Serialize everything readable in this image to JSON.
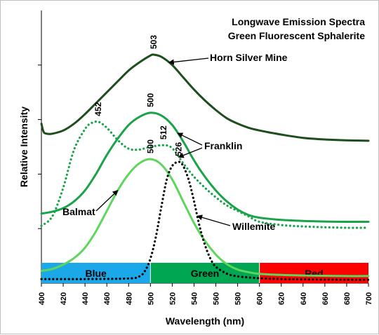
{
  "chart_data": {
    "type": "line",
    "title": [
      "Longwave Emission Spectra",
      "Green Fluorescent Sphalerite"
    ],
    "xlabel": "Wavelength (nm)",
    "ylabel": "Relative Intensity",
    "xlim": [
      400,
      700
    ],
    "ylim": [
      0,
      1
    ],
    "x_ticks": [
      400,
      420,
      440,
      460,
      480,
      500,
      520,
      540,
      560,
      580,
      600,
      620,
      640,
      660,
      680,
      700
    ],
    "y_tick_values": [
      0.2,
      0.4,
      0.6,
      0.8
    ],
    "y_tick_labels_shown": false,
    "grid": false,
    "legend": "none",
    "color_bands": [
      {
        "label": "Blue",
        "from": 400,
        "to": 500,
        "color": "#1ba8e8"
      },
      {
        "label": "Green",
        "from": 500,
        "to": 600,
        "color": "#00a651"
      },
      {
        "label": "Red",
        "from": 600,
        "to": 700,
        "color": "#ff0000"
      }
    ],
    "series": [
      {
        "name": "Horn Silver Mine",
        "peak_label": "503",
        "color": "#1e4d1e",
        "style": "solid",
        "x": [
          400,
          402,
          405,
          410,
          420,
          430,
          440,
          450,
          460,
          470,
          480,
          490,
          500,
          503,
          510,
          520,
          530,
          540,
          550,
          560,
          570,
          580,
          590,
          600,
          620,
          640,
          660,
          680,
          700
        ],
        "y": [
          0.585,
          0.555,
          0.548,
          0.548,
          0.56,
          0.585,
          0.62,
          0.66,
          0.7,
          0.74,
          0.78,
          0.81,
          0.835,
          0.838,
          0.83,
          0.8,
          0.755,
          0.71,
          0.67,
          0.635,
          0.605,
          0.585,
          0.57,
          0.56,
          0.545,
          0.533,
          0.527,
          0.524,
          0.522
        ]
      },
      {
        "name": "Franklin",
        "peak_label": "500",
        "color": "#1aa34a",
        "style": "solid",
        "x": [
          400,
          410,
          420,
          430,
          440,
          450,
          460,
          470,
          480,
          490,
          500,
          510,
          520,
          530,
          540,
          550,
          560,
          570,
          580,
          590,
          600,
          620,
          640,
          660,
          680,
          700
        ],
        "y": [
          0.255,
          0.262,
          0.275,
          0.3,
          0.34,
          0.4,
          0.47,
          0.53,
          0.58,
          0.61,
          0.625,
          0.615,
          0.58,
          0.52,
          0.45,
          0.39,
          0.34,
          0.3,
          0.27,
          0.25,
          0.24,
          0.232,
          0.228,
          0.226,
          0.225,
          0.225
        ]
      },
      {
        "name": "Franklin",
        "peak_label": "452",
        "peak_label_2": "512",
        "color": "#1aa34a",
        "style": "dotted",
        "x": [
          400,
          410,
          420,
          430,
          440,
          445,
          452,
          460,
          470,
          480,
          490,
          500,
          512,
          520,
          530,
          540,
          550,
          560,
          570,
          580,
          590,
          600,
          620,
          640,
          660,
          680,
          700
        ],
        "y": [
          0.21,
          0.245,
          0.35,
          0.49,
          0.565,
          0.585,
          0.592,
          0.57,
          0.525,
          0.493,
          0.49,
          0.5,
          0.506,
          0.495,
          0.44,
          0.39,
          0.35,
          0.315,
          0.285,
          0.265,
          0.245,
          0.225,
          0.213,
          0.208,
          0.205,
          0.203,
          0.203
        ]
      },
      {
        "name": "Balmat",
        "peak_label": "500",
        "color": "#5ed65e",
        "style": "solid",
        "x": [
          400,
          410,
          420,
          430,
          440,
          450,
          460,
          470,
          480,
          490,
          500,
          510,
          520,
          530,
          540,
          550,
          560,
          570,
          580,
          590,
          600,
          620,
          640,
          660,
          680,
          700
        ],
        "y": [
          0.045,
          0.052,
          0.068,
          0.092,
          0.13,
          0.19,
          0.265,
          0.34,
          0.4,
          0.44,
          0.455,
          0.435,
          0.38,
          0.3,
          0.22,
          0.155,
          0.105,
          0.07,
          0.05,
          0.04,
          0.034,
          0.03,
          0.028,
          0.027,
          0.026,
          0.026
        ]
      },
      {
        "name": "Willemite",
        "peak_label": "526",
        "color": "#000000",
        "style": "dotted",
        "x": [
          400,
          440,
          480,
          490,
          495,
          500,
          505,
          510,
          515,
          520,
          526,
          530,
          535,
          540,
          545,
          550,
          555,
          560,
          570,
          580,
          600,
          620,
          640,
          660,
          680,
          700
        ],
        "y": [
          0.015,
          0.015,
          0.017,
          0.025,
          0.045,
          0.09,
          0.17,
          0.28,
          0.38,
          0.43,
          0.445,
          0.43,
          0.38,
          0.3,
          0.21,
          0.14,
          0.09,
          0.06,
          0.035,
          0.025,
          0.018,
          0.015,
          0.014,
          0.013,
          0.012,
          0.012
        ]
      }
    ],
    "annotations": [
      {
        "text": "Horn Silver Mine",
        "target_series": 0,
        "target_x": 517
      },
      {
        "text": "Franklin",
        "target_series": 1,
        "target_x": 525
      },
      {
        "text": "Franklin",
        "target_series": 2,
        "target_x": 526
      },
      {
        "text": "Balmat",
        "target_series": 3,
        "target_x": 470
      },
      {
        "text": "Willemite",
        "target_series": 4,
        "target_x": 543
      }
    ]
  }
}
